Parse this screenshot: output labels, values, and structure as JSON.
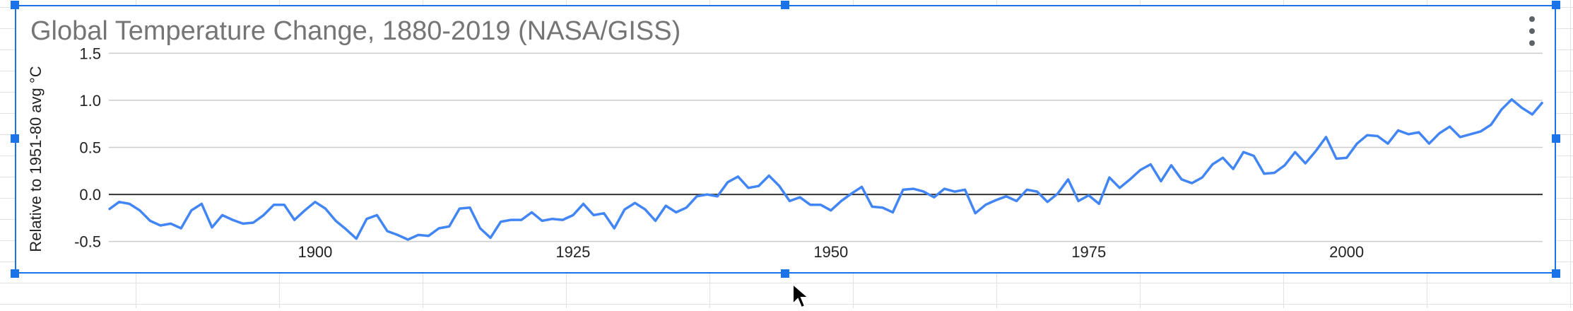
{
  "chart_data": {
    "type": "line",
    "title": "Global Temperature Change, 1880-2019 (NASA/GISS)",
    "xlabel": "",
    "ylabel": "Relative to 1951-80 avg °C",
    "xlim": [
      1880,
      2019
    ],
    "ylim": [
      -0.6,
      1.6
    ],
    "y_ticks": [
      -0.5,
      0.0,
      0.5,
      1.0,
      1.5
    ],
    "y_tick_labels": [
      "-0.5",
      "0.0",
      "0.5",
      "1.0",
      "1.5"
    ],
    "x_ticks": [
      1900,
      1925,
      1950,
      1975,
      2000
    ],
    "x_tick_labels": [
      "1900",
      "1925",
      "1950",
      "1975",
      "2000"
    ],
    "grid": true,
    "legend": "none",
    "series": [
      {
        "color": "#4285f4",
        "x": [
          1880,
          1881,
          1882,
          1883,
          1884,
          1885,
          1886,
          1887,
          1888,
          1889,
          1890,
          1891,
          1892,
          1893,
          1894,
          1895,
          1896,
          1897,
          1898,
          1899,
          1900,
          1901,
          1902,
          1903,
          1904,
          1905,
          1906,
          1907,
          1908,
          1909,
          1910,
          1911,
          1912,
          1913,
          1914,
          1915,
          1916,
          1917,
          1918,
          1919,
          1920,
          1921,
          1922,
          1923,
          1924,
          1925,
          1926,
          1927,
          1928,
          1929,
          1930,
          1931,
          1932,
          1933,
          1934,
          1935,
          1936,
          1937,
          1938,
          1939,
          1940,
          1941,
          1942,
          1943,
          1944,
          1945,
          1946,
          1947,
          1948,
          1949,
          1950,
          1951,
          1952,
          1953,
          1954,
          1955,
          1956,
          1957,
          1958,
          1959,
          1960,
          1961,
          1962,
          1963,
          1964,
          1965,
          1966,
          1967,
          1968,
          1969,
          1970,
          1971,
          1972,
          1973,
          1974,
          1975,
          1976,
          1977,
          1978,
          1979,
          1980,
          1981,
          1982,
          1983,
          1984,
          1985,
          1986,
          1987,
          1988,
          1989,
          1990,
          1991,
          1992,
          1993,
          1994,
          1995,
          1996,
          1997,
          1998,
          1999,
          2000,
          2001,
          2002,
          2003,
          2004,
          2005,
          2006,
          2007,
          2008,
          2009,
          2010,
          2011,
          2012,
          2013,
          2014,
          2015,
          2016,
          2017,
          2018,
          2019
        ],
        "values": [
          -0.16,
          -0.08,
          -0.1,
          -0.17,
          -0.28,
          -0.33,
          -0.31,
          -0.36,
          -0.17,
          -0.1,
          -0.35,
          -0.22,
          -0.27,
          -0.31,
          -0.3,
          -0.22,
          -0.11,
          -0.11,
          -0.27,
          -0.17,
          -0.08,
          -0.15,
          -0.28,
          -0.37,
          -0.47,
          -0.26,
          -0.22,
          -0.39,
          -0.43,
          -0.48,
          -0.43,
          -0.44,
          -0.36,
          -0.34,
          -0.15,
          -0.14,
          -0.36,
          -0.46,
          -0.29,
          -0.27,
          -0.27,
          -0.19,
          -0.28,
          -0.26,
          -0.27,
          -0.22,
          -0.1,
          -0.22,
          -0.2,
          -0.36,
          -0.16,
          -0.09,
          -0.16,
          -0.28,
          -0.12,
          -0.19,
          -0.14,
          -0.02,
          0.0,
          -0.02,
          0.13,
          0.19,
          0.07,
          0.09,
          0.2,
          0.09,
          -0.07,
          -0.03,
          -0.11,
          -0.11,
          -0.17,
          -0.07,
          0.01,
          0.08,
          -0.13,
          -0.14,
          -0.19,
          0.05,
          0.06,
          0.03,
          -0.03,
          0.06,
          0.03,
          0.05,
          -0.2,
          -0.11,
          -0.06,
          -0.02,
          -0.07,
          0.05,
          0.03,
          -0.08,
          0.01,
          0.16,
          -0.07,
          -0.01,
          -0.1,
          0.18,
          0.07,
          0.16,
          0.26,
          0.32,
          0.14,
          0.31,
          0.16,
          0.12,
          0.18,
          0.32,
          0.39,
          0.27,
          0.45,
          0.41,
          0.22,
          0.23,
          0.31,
          0.45,
          0.33,
          0.46,
          0.61,
          0.38,
          0.39,
          0.54,
          0.63,
          0.62,
          0.54,
          0.68,
          0.64,
          0.66,
          0.54,
          0.65,
          0.72,
          0.61,
          0.64,
          0.67,
          0.74,
          0.9,
          1.01,
          0.92,
          0.85,
          0.98
        ]
      }
    ]
  }
}
